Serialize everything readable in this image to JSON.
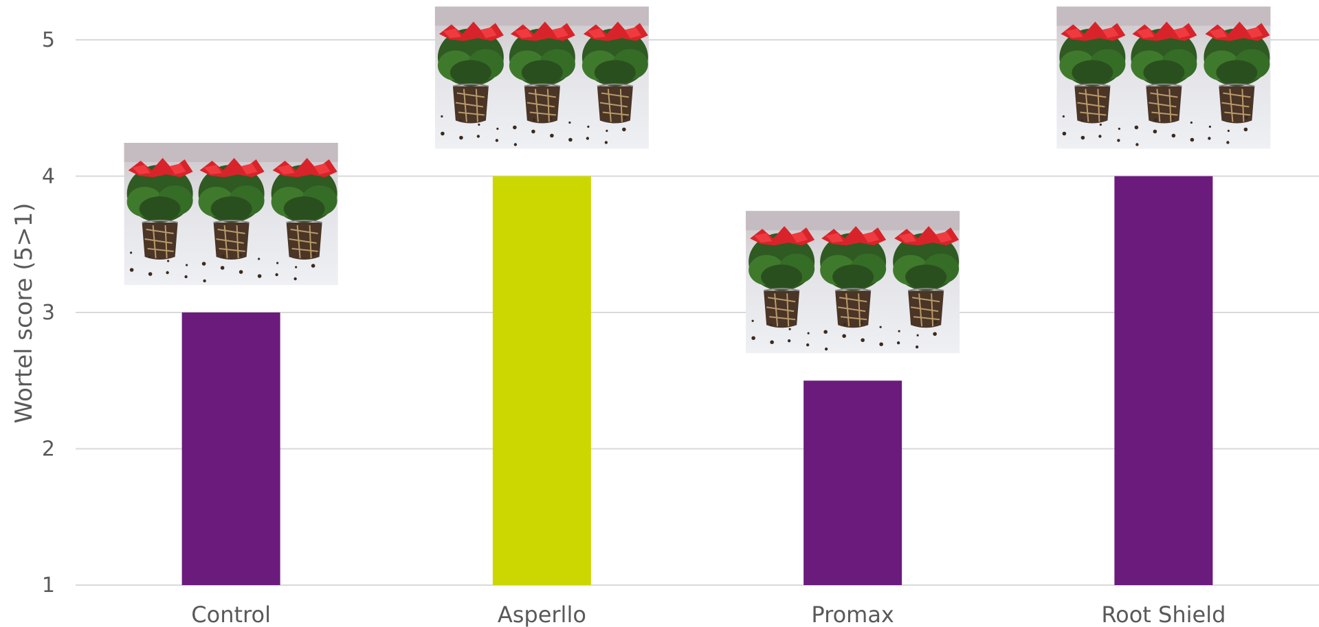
{
  "chart_data": {
    "type": "bar",
    "categories": [
      "Control",
      "Asperllo",
      "Promax",
      "Root Shield"
    ],
    "values": [
      3,
      4,
      2.5,
      4
    ],
    "bar_colors": [
      "#6a1b7c",
      "#ccd600",
      "#6a1b7c",
      "#6a1b7c"
    ],
    "xlabel": "",
    "ylabel": "Wortel score (5>1)",
    "ylim": [
      1,
      5.3
    ],
    "yticks": [
      1,
      2,
      3,
      4,
      5
    ],
    "grid": true,
    "legend": "none"
  },
  "photos": [
    {
      "icon": "poinsettia-roots-photo",
      "category": "Control"
    },
    {
      "icon": "poinsettia-roots-photo",
      "category": "Asperllo"
    },
    {
      "icon": "poinsettia-roots-photo",
      "category": "Promax"
    },
    {
      "icon": "poinsettia-roots-photo",
      "category": "Root Shield"
    }
  ]
}
